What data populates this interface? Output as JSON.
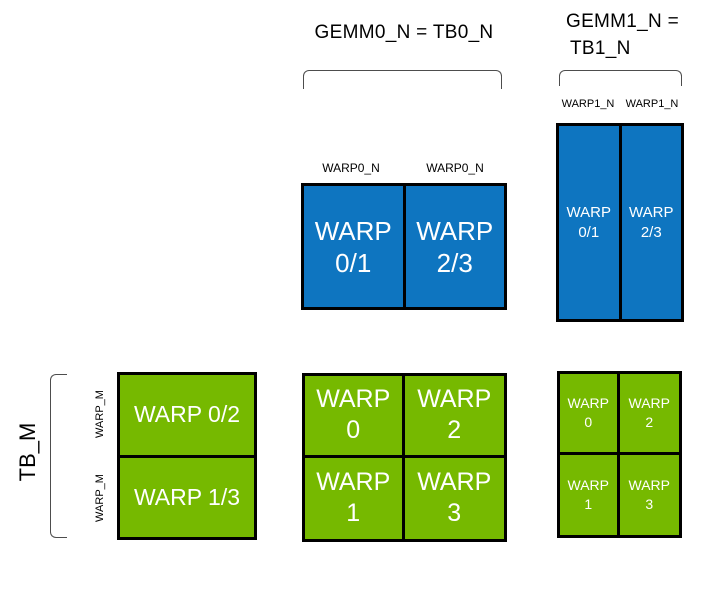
{
  "colors": {
    "blue": "#0e75c0",
    "green": "#76b900",
    "box_border": "#000000",
    "bracket": "#4d4d4d",
    "text_dark": "#000000",
    "text_light": "#ffffff"
  },
  "headers": {
    "gemm0": "GEMM0_N = TB0_N",
    "gemm1_line1": "GEMM1_N =",
    "gemm1_line2": "TB1_N"
  },
  "row_axis": {
    "tb_label": "TB_M",
    "warp_label_top": "WARP_M",
    "warp_label_bottom": "WARP_M"
  },
  "gemm0_tile": {
    "col_labels": [
      "WARP0_N",
      "WARP0_N"
    ],
    "cells": [
      {
        "l1": "WARP",
        "l2": "0/1"
      },
      {
        "l1": "WARP",
        "l2": "2/3"
      }
    ]
  },
  "gemm1_tile": {
    "col_labels": [
      "WARP1_N",
      "WARP1_N"
    ],
    "cells": [
      {
        "l1": "WARP",
        "l2": "0/1"
      },
      {
        "l1": "WARP",
        "l2": "2/3"
      }
    ]
  },
  "left_tile": {
    "rows": [
      "WARP 0/2",
      "WARP 1/3"
    ]
  },
  "mid_tile": {
    "cells": [
      {
        "l1": "WARP",
        "l2": "0"
      },
      {
        "l1": "WARP",
        "l2": "2"
      },
      {
        "l1": "WARP",
        "l2": "1"
      },
      {
        "l1": "WARP",
        "l2": "3"
      }
    ]
  },
  "right_tile": {
    "cells": [
      {
        "l1": "WARP",
        "l2": "0"
      },
      {
        "l1": "WARP",
        "l2": "2"
      },
      {
        "l1": "WARP",
        "l2": "1"
      },
      {
        "l1": "WARP",
        "l2": "3"
      }
    ]
  }
}
